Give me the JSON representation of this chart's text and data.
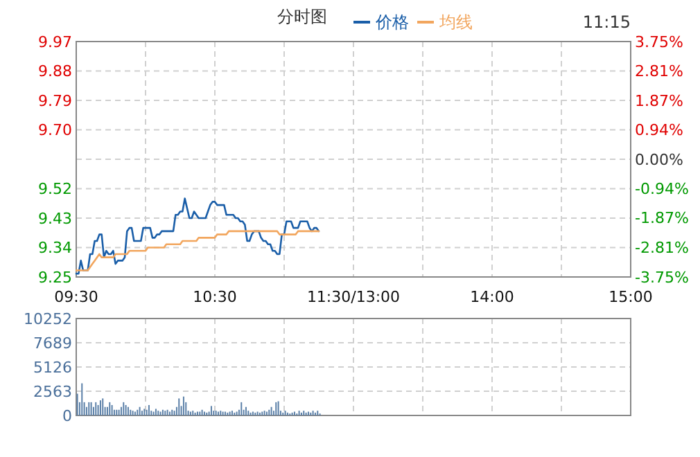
{
  "chart_data": [
    {
      "type": "line",
      "title": "分时图",
      "annotations": [
        "11:15"
      ],
      "legend": "top",
      "grid": true,
      "categories": [
        "09:30",
        null,
        null,
        null,
        null,
        null,
        null,
        null,
        null,
        null,
        null,
        null,
        null,
        null,
        null,
        null,
        null,
        null,
        null,
        null,
        null,
        null,
        null,
        null,
        null,
        null,
        null,
        null,
        null,
        null,
        null,
        null,
        null,
        null,
        null,
        null,
        null,
        null,
        null,
        null,
        null,
        null,
        null,
        null,
        null,
        null,
        null,
        null,
        null,
        null,
        null,
        null,
        null,
        null,
        null,
        null,
        null,
        null,
        null,
        null,
        "10:30",
        null,
        null,
        null,
        null,
        null,
        null,
        null,
        null,
        null,
        null,
        null,
        null,
        null,
        null,
        null,
        null,
        null,
        null,
        null,
        null,
        null,
        null,
        null,
        null,
        null,
        null,
        null,
        null,
        null,
        null,
        null,
        null,
        null,
        null,
        null,
        null,
        null,
        null,
        null,
        null,
        null,
        null,
        null,
        null,
        null,
        null,
        null,
        null,
        null,
        null,
        null,
        null,
        null,
        null,
        null,
        null,
        null,
        null,
        null,
        "11:30/13:00",
        null,
        null,
        null,
        null,
        null,
        null,
        null,
        null,
        null,
        null,
        null,
        null,
        null,
        null,
        null,
        null,
        null,
        null,
        null,
        null,
        null,
        null,
        null,
        null,
        null,
        null,
        null,
        null,
        null,
        null,
        null,
        null,
        null,
        null,
        null,
        null,
        null,
        null,
        null,
        null,
        null,
        null,
        null,
        null,
        null,
        null,
        null,
        null,
        null,
        null,
        null,
        null,
        null,
        null,
        null,
        null,
        null,
        null,
        null,
        "14:00",
        null,
        null,
        null,
        null,
        null,
        null,
        null,
        null,
        null,
        null,
        null,
        null,
        null,
        null,
        null,
        null,
        null,
        null,
        null,
        null,
        null,
        null,
        null,
        null,
        null,
        null,
        null,
        null,
        null,
        null,
        null,
        null,
        null,
        null,
        null,
        null,
        null,
        null,
        null,
        null,
        null,
        null,
        null,
        null,
        null,
        null,
        null,
        null,
        null,
        null,
        null,
        null,
        null,
        null,
        null,
        null,
        null,
        null,
        null,
        "15:00"
      ],
      "ylim": [
        9.25,
        9.97
      ],
      "yticks": [
        9.25,
        9.34,
        9.43,
        9.52,
        {
          "value": 9.61,
          "label": null
        },
        {
          "value": 9.7,
          "label": "9.70"
        },
        9.79,
        9.88,
        9.97
      ],
      "y2lim": [
        -3.75,
        3.75
      ],
      "y2ticks": [
        {
          "value": -3.75,
          "label": "-3.75%"
        },
        {
          "value": -2.81,
          "label": "-2.81%"
        },
        {
          "value": -1.87,
          "label": "-1.87%"
        },
        {
          "value": -0.94,
          "label": "-0.94%"
        },
        {
          "value": 0,
          "label": "0.00%"
        },
        {
          "value": 0.94,
          "label": "0.94%"
        },
        {
          "value": 1.87,
          "label": "1.87%"
        },
        {
          "value": 2.81,
          "label": "2.81%"
        },
        {
          "value": 3.75,
          "label": "3.75%"
        }
      ],
      "series": [
        {
          "name": "价格",
          "color": "#1a5ea8",
          "values": [
            9.26,
            9.26,
            9.3,
            9.27,
            9.27,
            9.27,
            9.32,
            9.32,
            9.36,
            9.36,
            9.38,
            9.38,
            9.31,
            9.33,
            9.32,
            9.32,
            9.33,
            9.29,
            9.3,
            9.3,
            9.3,
            9.31,
            9.39,
            9.4,
            9.4,
            9.36,
            9.36,
            9.36,
            9.36,
            9.4,
            9.4,
            9.4,
            9.4,
            9.37,
            9.37,
            9.38,
            9.38,
            9.39,
            9.39,
            9.39,
            9.39,
            9.39,
            9.39,
            9.44,
            9.44,
            9.45,
            9.45,
            9.49,
            9.46,
            9.43,
            9.43,
            9.45,
            9.44,
            9.43,
            9.43,
            9.43,
            9.43,
            9.45,
            9.47,
            9.48,
            9.48,
            9.47,
            9.47,
            9.47,
            9.47,
            9.44,
            9.44,
            9.44,
            9.44,
            9.43,
            9.43,
            9.42,
            9.42,
            9.41,
            9.36,
            9.36,
            9.38,
            9.39,
            9.39,
            9.39,
            9.37,
            9.36,
            9.36,
            9.35,
            9.35,
            9.33,
            9.33,
            9.32,
            9.32,
            9.38,
            9.38,
            9.42,
            9.42,
            9.42,
            9.4,
            9.4,
            9.4,
            9.42,
            9.42,
            9.42,
            9.42,
            9.4,
            9.39,
            9.4,
            9.4,
            9.39,
            null,
            null,
            null,
            null,
            null,
            null,
            null,
            null,
            null,
            null,
            null,
            null,
            null,
            null,
            null,
            null,
            null,
            null,
            null,
            null,
            null,
            null,
            null,
            null,
            null,
            null,
            null,
            null,
            null,
            null,
            null,
            null,
            null,
            null,
            null,
            null,
            null,
            null,
            null,
            null,
            null,
            null,
            null,
            null,
            null,
            null,
            null,
            null,
            null,
            null,
            null,
            null,
            null,
            null,
            null,
            null,
            null,
            null,
            null,
            null,
            null,
            null,
            null,
            null,
            null,
            null,
            null,
            null,
            null,
            null,
            null,
            null,
            null,
            null,
            null,
            null,
            null,
            null,
            null,
            null,
            null,
            null,
            null,
            null,
            null,
            null,
            null,
            null,
            null,
            null,
            null,
            null,
            null,
            null,
            null,
            null,
            null,
            null,
            null,
            null,
            null,
            null,
            null,
            null,
            null,
            null,
            null,
            null,
            null,
            null,
            null,
            null,
            null,
            null,
            null,
            null,
            null,
            null,
            null,
            null,
            null,
            null,
            null,
            null,
            null,
            null,
            null,
            null,
            null,
            null,
            null,
            null,
            null,
            null,
            null
          ]
        },
        {
          "name": "均线",
          "color": "#f2a65e",
          "values": [
            9.27,
            9.27,
            9.27,
            9.27,
            9.27,
            9.27,
            9.28,
            9.29,
            9.3,
            9.31,
            9.32,
            9.31,
            9.31,
            9.31,
            9.31,
            9.31,
            9.31,
            9.32,
            9.32,
            9.32,
            9.32,
            9.32,
            9.32,
            9.33,
            9.33,
            9.33,
            9.33,
            9.33,
            9.33,
            9.33,
            9.33,
            9.34,
            9.34,
            9.34,
            9.34,
            9.34,
            9.34,
            9.34,
            9.34,
            9.35,
            9.35,
            9.35,
            9.35,
            9.35,
            9.35,
            9.35,
            9.36,
            9.36,
            9.36,
            9.36,
            9.36,
            9.36,
            9.36,
            9.37,
            9.37,
            9.37,
            9.37,
            9.37,
            9.37,
            9.37,
            9.37,
            9.38,
            9.38,
            9.38,
            9.38,
            9.38,
            9.39,
            9.39,
            9.39,
            9.39,
            9.39,
            9.39,
            9.39,
            9.39,
            9.39,
            9.39,
            9.39,
            9.39,
            9.39,
            9.39,
            9.39,
            9.39,
            9.39,
            9.39,
            9.39,
            9.39,
            9.39,
            9.39,
            9.38,
            9.38,
            9.38,
            9.38,
            9.38,
            9.38,
            9.38,
            9.38,
            9.39,
            9.39,
            9.39,
            9.39,
            9.39,
            9.39,
            9.39,
            9.39,
            9.39,
            9.39,
            null,
            null,
            null,
            null,
            null,
            null,
            null,
            null,
            null,
            null,
            null,
            null,
            null,
            null,
            null,
            null,
            null,
            null,
            null,
            null,
            null,
            null,
            null,
            null,
            null,
            null,
            null,
            null,
            null,
            null,
            null,
            null,
            null,
            null,
            null,
            null,
            null,
            null,
            null,
            null,
            null,
            null,
            null,
            null,
            null,
            null,
            null,
            null,
            null,
            null,
            null,
            null,
            null,
            null,
            null,
            null,
            null,
            null,
            null,
            null,
            null,
            null,
            null,
            null,
            null,
            null,
            null,
            null,
            null,
            null,
            null,
            null,
            null,
            null,
            null,
            null,
            null,
            null,
            null,
            null,
            null,
            null,
            null,
            null,
            null,
            null,
            null,
            null,
            null,
            null,
            null,
            null,
            null,
            null,
            null,
            null,
            null,
            null,
            null,
            null,
            null,
            null,
            null,
            null,
            null,
            null,
            null,
            null,
            null,
            null,
            null,
            null,
            null,
            null,
            null,
            null,
            null,
            null,
            null,
            null,
            null,
            null,
            null,
            null,
            null,
            null,
            null,
            null,
            null,
            null,
            null,
            null,
            null,
            null,
            null
          ]
        }
      ]
    },
    {
      "type": "bar",
      "grid": true,
      "tick_labels": "y",
      "color": "#5b80a8",
      "categories": [
        null,
        null,
        null,
        null,
        null,
        null,
        null,
        null,
        null,
        null,
        null,
        null,
        null,
        null,
        null,
        null,
        null,
        null,
        null,
        null,
        null,
        null,
        null,
        null,
        null,
        null,
        null,
        null,
        null,
        null,
        null,
        null,
        null,
        null,
        null,
        null,
        null,
        null,
        null,
        null,
        null,
        null,
        null,
        null,
        null,
        null,
        null,
        null,
        null,
        null,
        null,
        null,
        null,
        null,
        null,
        null,
        null,
        null,
        null,
        null,
        null,
        null,
        null,
        null,
        null,
        null,
        null,
        null,
        null,
        null,
        null,
        null,
        null,
        null,
        null,
        null,
        null,
        null,
        null,
        null,
        null,
        null,
        null,
        null,
        null,
        null,
        null,
        null,
        null,
        null,
        null,
        null,
        null,
        null,
        null,
        null,
        null,
        null,
        null,
        null,
        null,
        null,
        null,
        null,
        null,
        null,
        null,
        null,
        null,
        null,
        null,
        null,
        null,
        null,
        null,
        null,
        null,
        null,
        null,
        null,
        null,
        null,
        null,
        null,
        null,
        null,
        null,
        null,
        null,
        null,
        null,
        null,
        null,
        null,
        null,
        null,
        null,
        null,
        null,
        null,
        null,
        null,
        null,
        null,
        null,
        null,
        null,
        null,
        null,
        null,
        null,
        null,
        null,
        null,
        null,
        null,
        null,
        null,
        null,
        null,
        null,
        null,
        null,
        null,
        null,
        null,
        null,
        null,
        null,
        null,
        null,
        null,
        null,
        null,
        null,
        null,
        null,
        null,
        null,
        null,
        null,
        null,
        null,
        null,
        null,
        null,
        null,
        null,
        null,
        null,
        null,
        null,
        null,
        null,
        null,
        null,
        null,
        null,
        null,
        null,
        null,
        null,
        null,
        null,
        null,
        null,
        null,
        null,
        null,
        null,
        null,
        null,
        null,
        null,
        null,
        null,
        null,
        null,
        null,
        null,
        null,
        null,
        null,
        null,
        null,
        null,
        null,
        null,
        null,
        null,
        null,
        null,
        null,
        null,
        null,
        null,
        null,
        null,
        null,
        null,
        null
      ],
      "values": [
        2300,
        1400,
        3400,
        1400,
        900,
        1400,
        1400,
        900,
        1400,
        1100,
        1600,
        1800,
        900,
        900,
        1400,
        1100,
        600,
        600,
        600,
        900,
        1400,
        1100,
        900,
        600,
        500,
        400,
        600,
        900,
        500,
        700,
        600,
        1100,
        500,
        400,
        700,
        500,
        400,
        600,
        500,
        600,
        400,
        600,
        500,
        900,
        1800,
        1000,
        2000,
        1400,
        500,
        400,
        500,
        300,
        400,
        400,
        600,
        400,
        300,
        400,
        1000,
        500,
        500,
        400,
        500,
        400,
        400,
        300,
        400,
        500,
        300,
        400,
        600,
        1400,
        600,
        900,
        500,
        300,
        400,
        300,
        400,
        300,
        400,
        500,
        400,
        600,
        900,
        500,
        1400,
        1500,
        500,
        300,
        500,
        300,
        200,
        300,
        400,
        200,
        500,
        300,
        500,
        300,
        400,
        300,
        500,
        300,
        500,
        200,
        null,
        null,
        null,
        null,
        null,
        null,
        null,
        null,
        null,
        null,
        null,
        null,
        null,
        null,
        null,
        null,
        null,
        null,
        null,
        null,
        null,
        null,
        null,
        null,
        null,
        null,
        null,
        null,
        null,
        null,
        null,
        null,
        null,
        null,
        null,
        null,
        null,
        null,
        null,
        null,
        null,
        null,
        null,
        null,
        null,
        null,
        null,
        null,
        null,
        null,
        null,
        null,
        null,
        null,
        null,
        null,
        null,
        null,
        null,
        null,
        null,
        null,
        null,
        null,
        null,
        null,
        null,
        null,
        null,
        null,
        null,
        null,
        null,
        null,
        null,
        null,
        null,
        null,
        null,
        null,
        null,
        null,
        null,
        null,
        null,
        null,
        null,
        null,
        null,
        null,
        null,
        null,
        null,
        null,
        null,
        null,
        null,
        null,
        null,
        null,
        null,
        null,
        null,
        null,
        null,
        null,
        null,
        null,
        null,
        null,
        null,
        null,
        null,
        null,
        null,
        null,
        null,
        null,
        null,
        null,
        null,
        null,
        null,
        null,
        null,
        null,
        null,
        null,
        null,
        null,
        null,
        null,
        null,
        null,
        null
      ],
      "ylim": [
        0,
        10252
      ],
      "yticks": [
        0,
        2563,
        5126,
        7689,
        10252
      ]
    }
  ]
}
